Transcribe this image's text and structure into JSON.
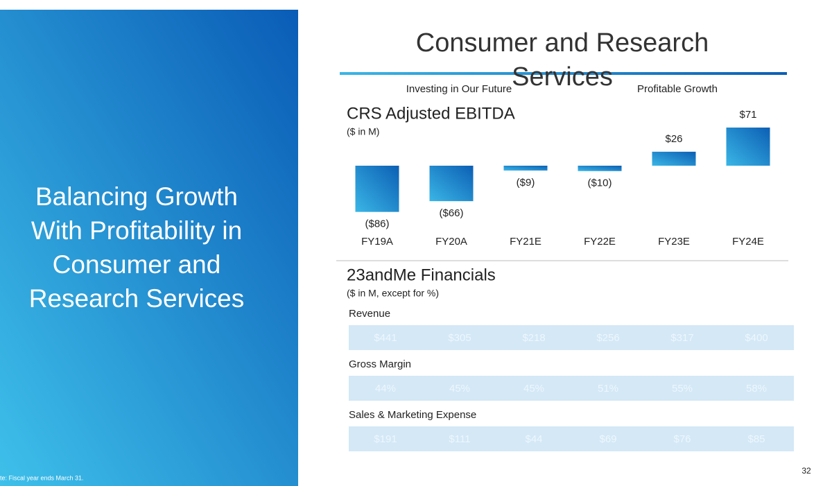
{
  "side_title": [
    "Balancing Growth",
    "With Profitability in",
    "Consumer and",
    "Research Services"
  ],
  "footnote": "te: Fiscal year ends March 31.",
  "slide_title": [
    "Consumer and Research",
    "Services"
  ],
  "sections": [
    "Investing in Our Future",
    "Profitable Growth"
  ],
  "page_number": "32",
  "chart_data": {
    "type": "bar",
    "title": "CRS Adjusted EBITDA",
    "subtitle": "($ in M)",
    "categories": [
      "FY19A",
      "FY20A",
      "FY21E",
      "FY22E",
      "FY23E",
      "FY24E"
    ],
    "values": [
      -86,
      -66,
      -9,
      -10,
      26,
      71
    ],
    "value_labels": [
      "($86)",
      "($66)",
      "($9)",
      "($10)",
      "$26",
      "$71"
    ]
  },
  "table": {
    "title": "23andMe Financials",
    "subtitle": "($ in M, except for %)",
    "rows": [
      {
        "name": "Revenue",
        "cells": [
          "$441",
          "$305",
          "$218",
          "$256",
          "$317",
          "$400"
        ]
      },
      {
        "name": "Gross Margin",
        "cells": [
          "44%",
          "45%",
          "45%",
          "51%",
          "55%",
          "58%"
        ]
      },
      {
        "name": "Sales & Marketing Expense",
        "cells": [
          "$191",
          "$111",
          "$44",
          "$69",
          "$76",
          "$85"
        ]
      }
    ]
  }
}
